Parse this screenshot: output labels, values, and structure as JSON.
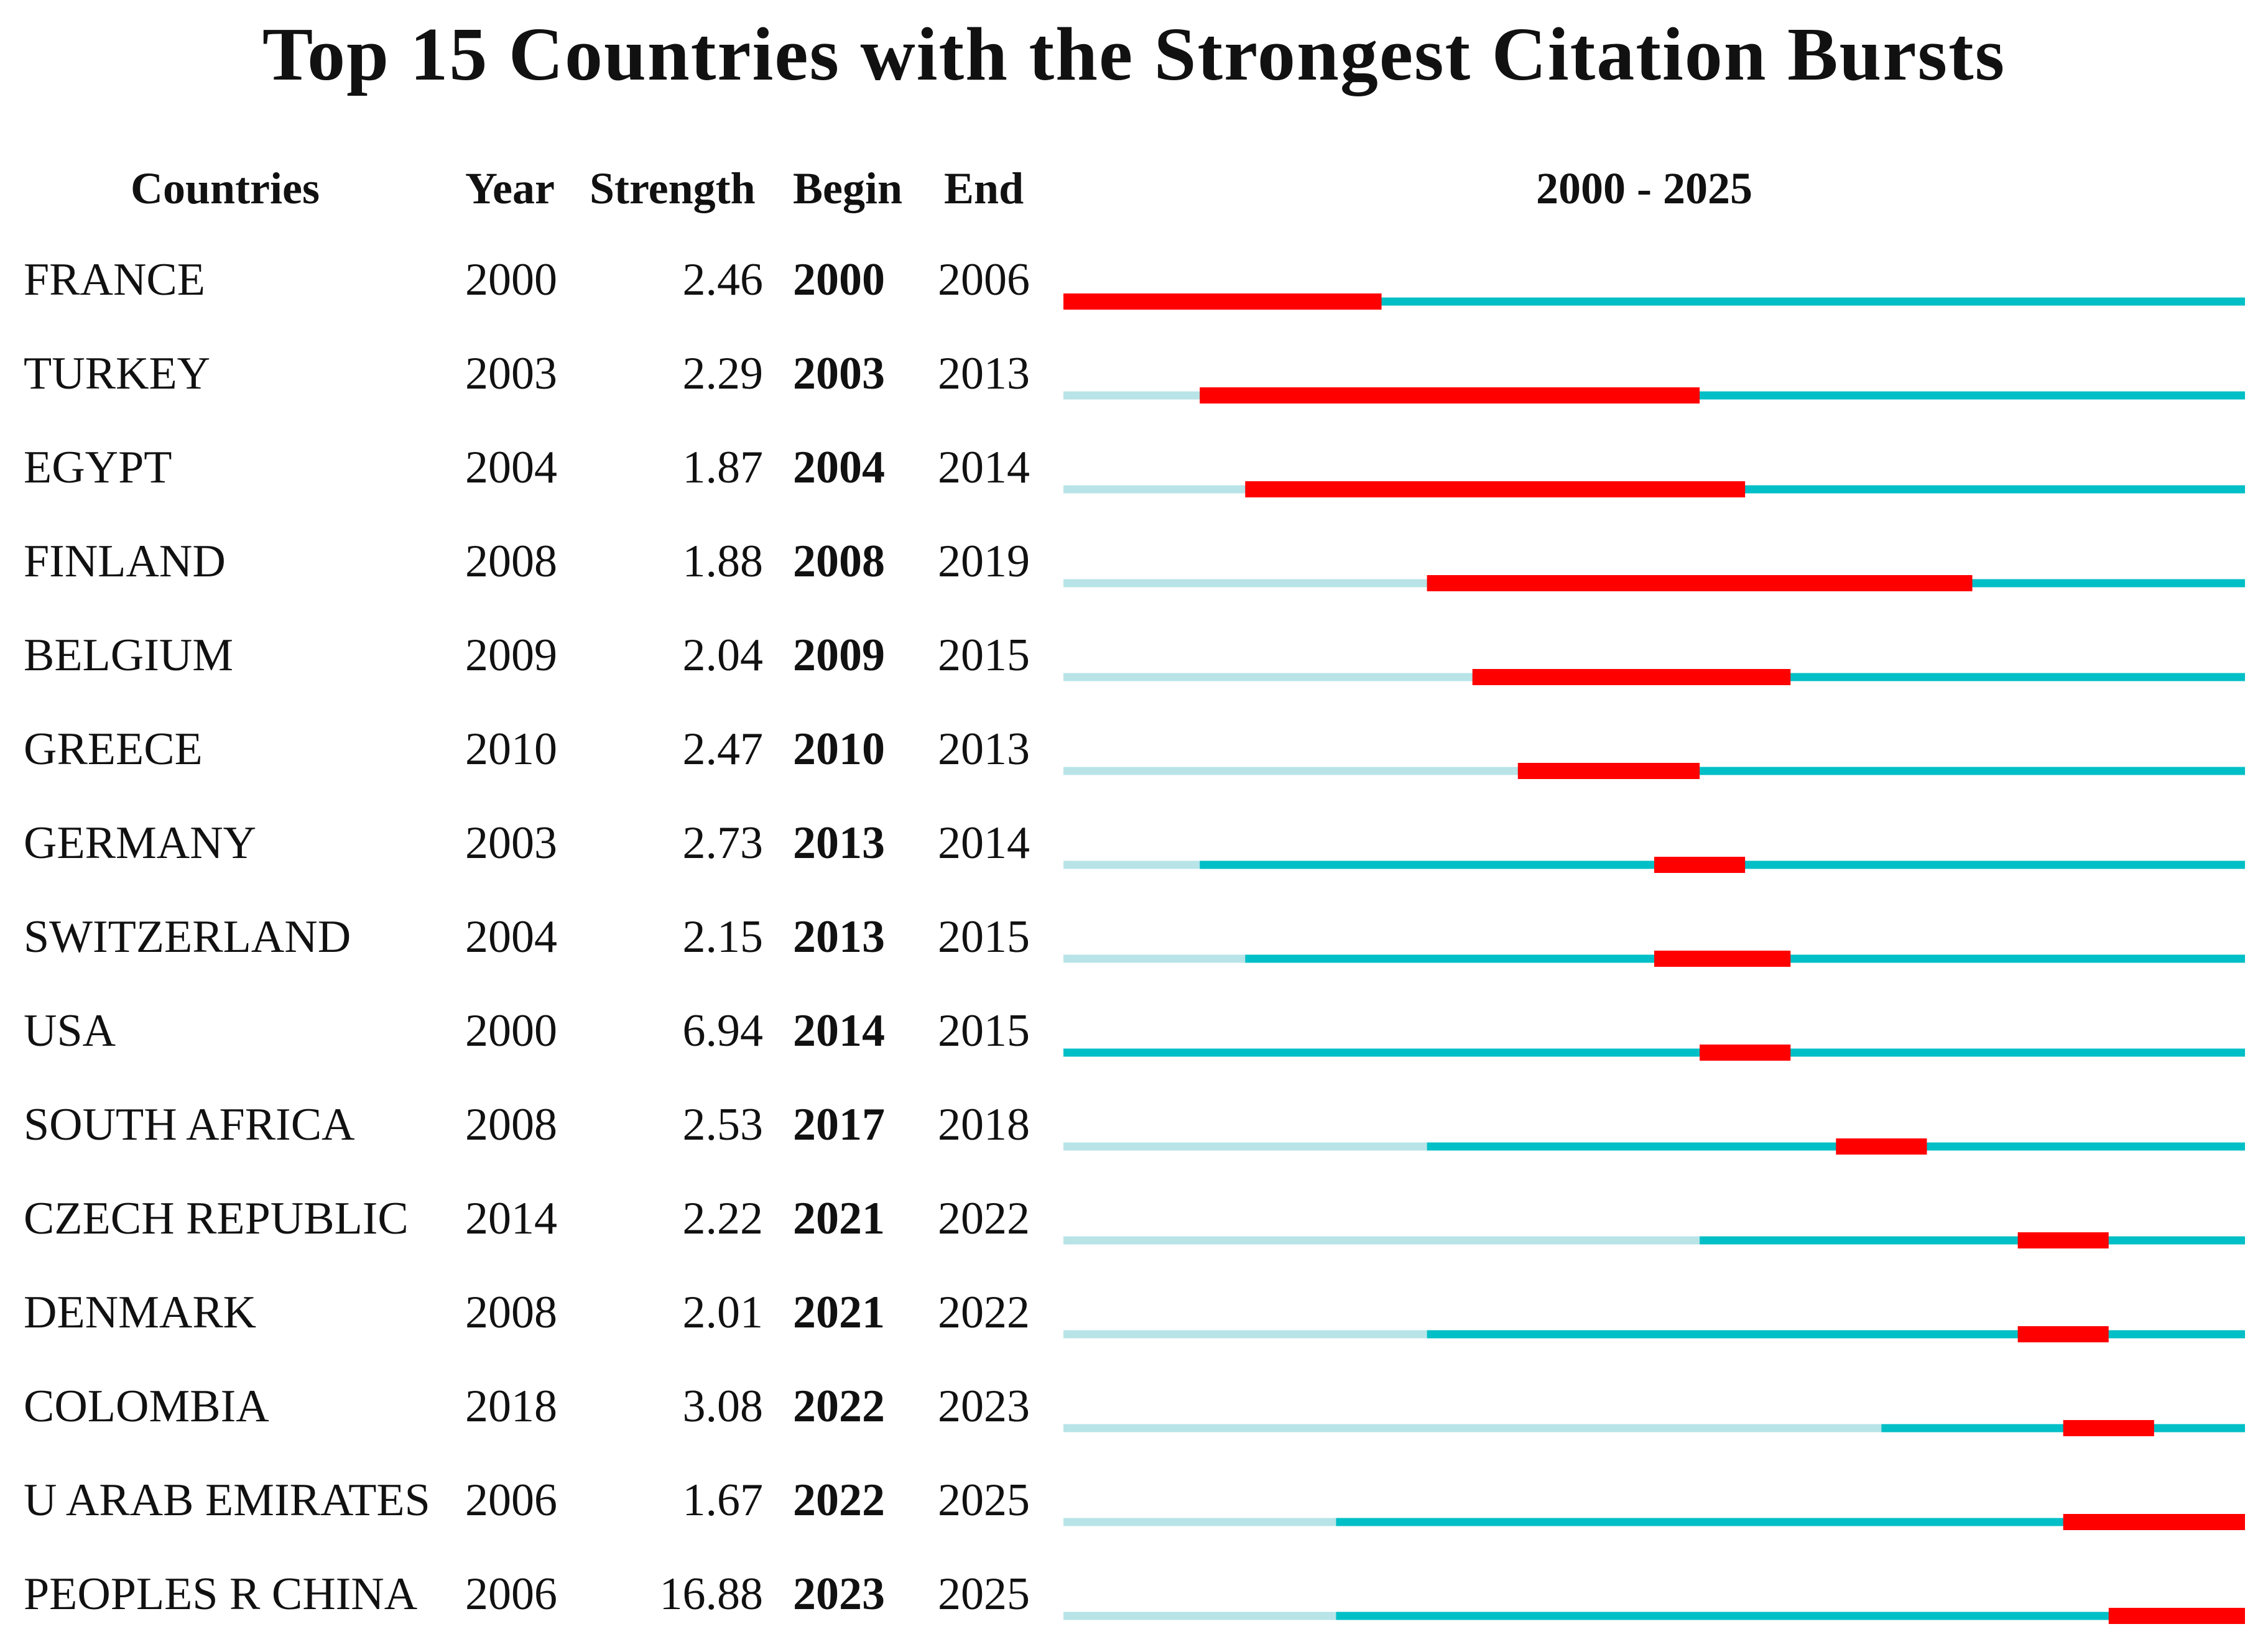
{
  "chart_data": {
    "type": "table",
    "title": "Top 15 Countries with the Strongest Citation Bursts",
    "headers": {
      "countries": "Countries",
      "year": "Year",
      "strength": "Strength",
      "begin": "Begin",
      "end": "End",
      "range": "2000 - 2025"
    },
    "year_range": [
      2000,
      2025
    ],
    "colors": {
      "burst": "#ff0000",
      "active": "#00bfc6",
      "inactive": "#b8e4e8"
    },
    "rows": [
      {
        "country": "FRANCE",
        "year": 2000,
        "strength": "2.46",
        "begin": 2000,
        "end": 2006
      },
      {
        "country": "TURKEY",
        "year": 2003,
        "strength": "2.29",
        "begin": 2003,
        "end": 2013
      },
      {
        "country": "EGYPT",
        "year": 2004,
        "strength": "1.87",
        "begin": 2004,
        "end": 2014
      },
      {
        "country": "FINLAND",
        "year": 2008,
        "strength": "1.88",
        "begin": 2008,
        "end": 2019
      },
      {
        "country": "BELGIUM",
        "year": 2009,
        "strength": "2.04",
        "begin": 2009,
        "end": 2015
      },
      {
        "country": "GREECE",
        "year": 2010,
        "strength": "2.47",
        "begin": 2010,
        "end": 2013
      },
      {
        "country": "GERMANY",
        "year": 2003,
        "strength": "2.73",
        "begin": 2013,
        "end": 2014
      },
      {
        "country": "SWITZERLAND",
        "year": 2004,
        "strength": "2.15",
        "begin": 2013,
        "end": 2015
      },
      {
        "country": "USA",
        "year": 2000,
        "strength": "6.94",
        "begin": 2014,
        "end": 2015
      },
      {
        "country": "SOUTH AFRICA",
        "year": 2008,
        "strength": "2.53",
        "begin": 2017,
        "end": 2018
      },
      {
        "country": "CZECH REPUBLIC",
        "year": 2014,
        "strength": "2.22",
        "begin": 2021,
        "end": 2022
      },
      {
        "country": "DENMARK",
        "year": 2008,
        "strength": "2.01",
        "begin": 2021,
        "end": 2022
      },
      {
        "country": "COLOMBIA",
        "year": 2018,
        "strength": "3.08",
        "begin": 2022,
        "end": 2023
      },
      {
        "country": "U ARAB EMIRATES",
        "year": 2006,
        "strength": "1.67",
        "begin": 2022,
        "end": 2025
      },
      {
        "country": "PEOPLES R CHINA",
        "year": 2006,
        "strength": "16.88",
        "begin": 2023,
        "end": 2025
      }
    ]
  }
}
